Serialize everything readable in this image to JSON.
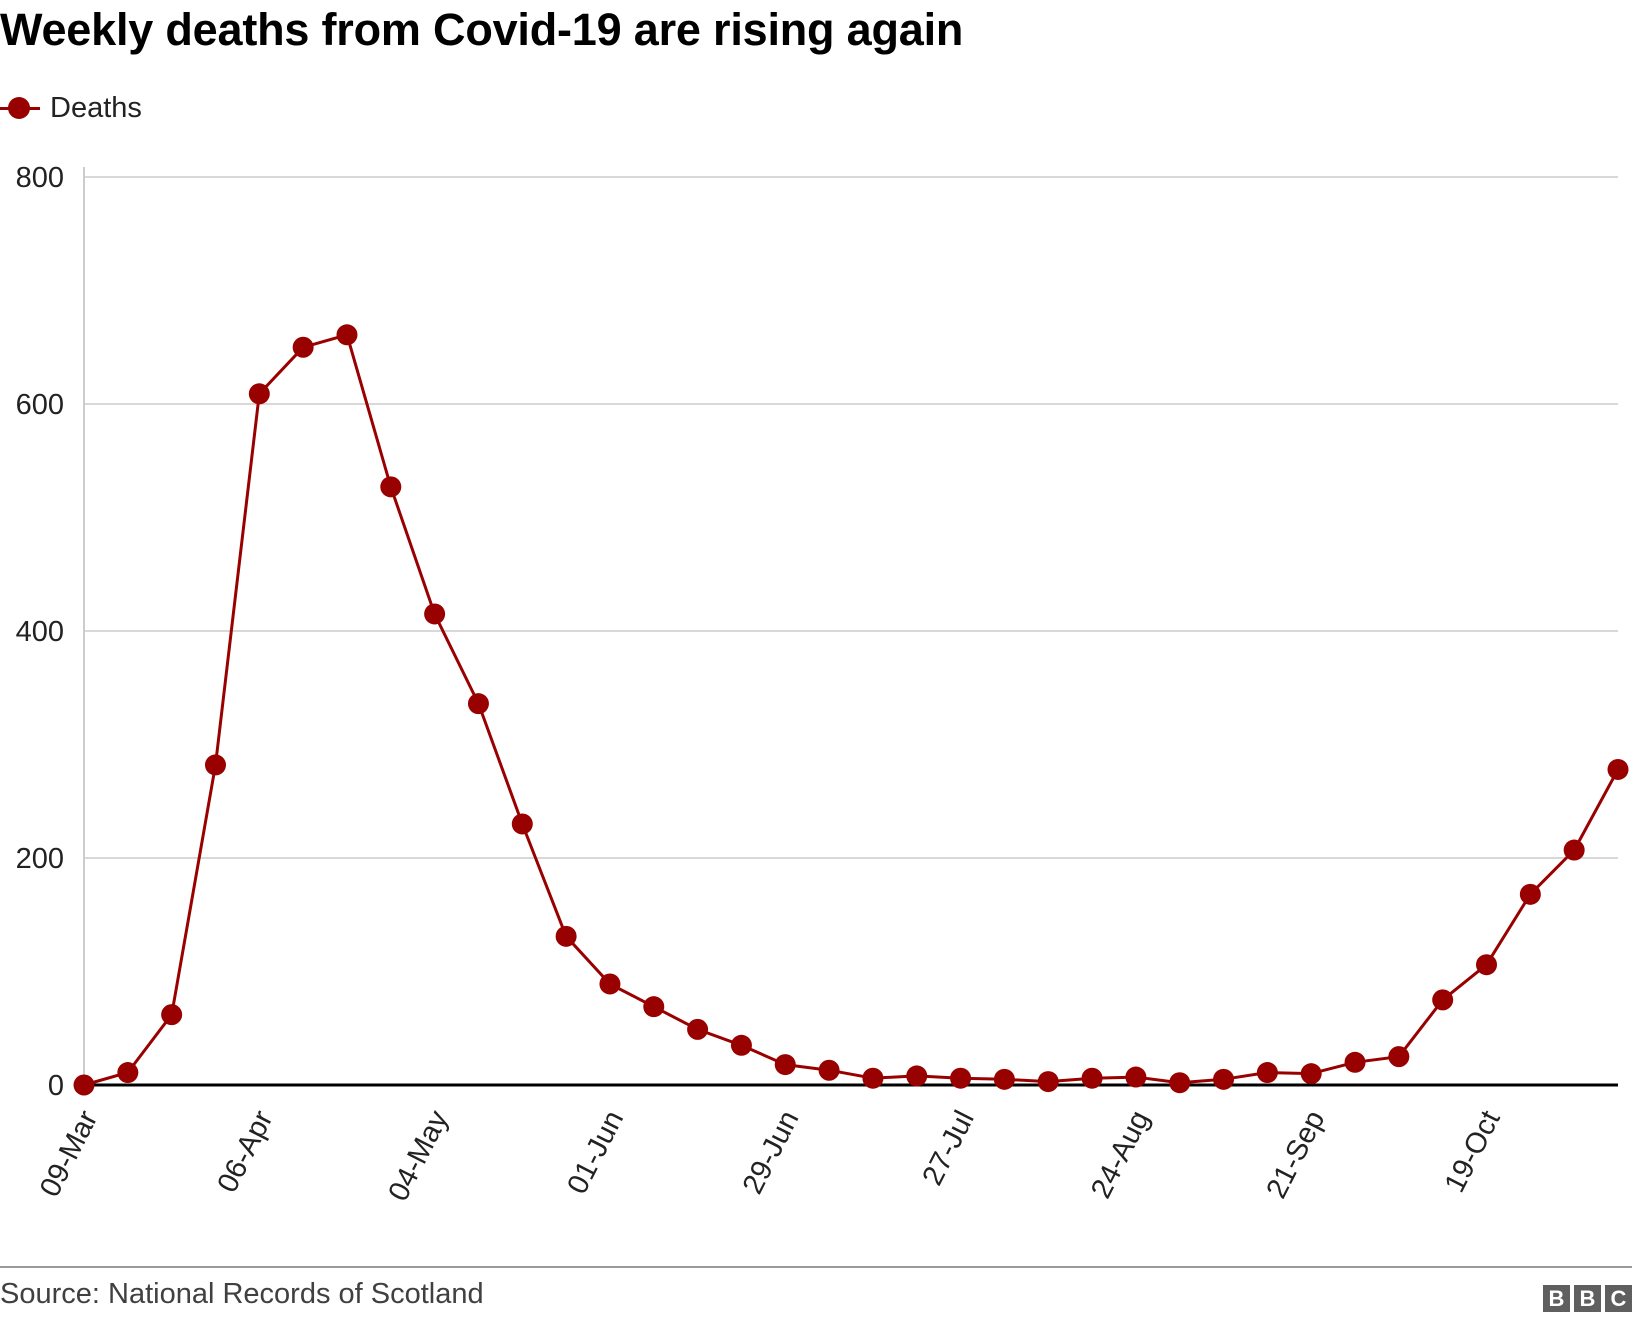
{
  "header": {
    "title": "Weekly deaths from Covid-19 are rising again"
  },
  "legend": {
    "label": "Deaths"
  },
  "footer": {
    "source": "Source: National Records of Scotland",
    "logo": [
      "B",
      "B",
      "C"
    ]
  },
  "colors": {
    "series": "#990000",
    "grid": "#cccccc",
    "axis": "#000000"
  },
  "chart_data": {
    "type": "line",
    "title": "Weekly deaths from Covid-19 are rising again",
    "xlabel": "",
    "ylabel": "",
    "ylim": [
      0,
      800
    ],
    "yticks": [
      0,
      200,
      400,
      600,
      800
    ],
    "xtick_labels": [
      "09-Mar",
      "06-Apr",
      "04-May",
      "01-Jun",
      "29-Jun",
      "27-Jul",
      "24-Aug",
      "21-Sep",
      "19-Oct"
    ],
    "xtick_every": 4,
    "grid": true,
    "legend_position": "top-left",
    "x": [
      "09-Mar",
      "16-Mar",
      "23-Mar",
      "30-Mar",
      "06-Apr",
      "13-Apr",
      "20-Apr",
      "27-Apr",
      "04-May",
      "11-May",
      "18-May",
      "25-May",
      "01-Jun",
      "08-Jun",
      "15-Jun",
      "22-Jun",
      "29-Jun",
      "06-Jul",
      "13-Jul",
      "20-Jul",
      "27-Jul",
      "03-Aug",
      "10-Aug",
      "17-Aug",
      "24-Aug",
      "31-Aug",
      "07-Sep",
      "14-Sep",
      "21-Sep",
      "28-Sep",
      "05-Oct",
      "12-Oct",
      "19-Oct",
      "26-Oct",
      "02-Nov",
      "09-Nov"
    ],
    "series": [
      {
        "name": "Deaths",
        "values": [
          0,
          11,
          62,
          282,
          609,
          650,
          661,
          527,
          415,
          336,
          230,
          131,
          89,
          69,
          49,
          35,
          18,
          13,
          6,
          8,
          6,
          5,
          3,
          6,
          7,
          2,
          5,
          11,
          10,
          20,
          25,
          75,
          106,
          168,
          207,
          278
        ]
      }
    ]
  }
}
